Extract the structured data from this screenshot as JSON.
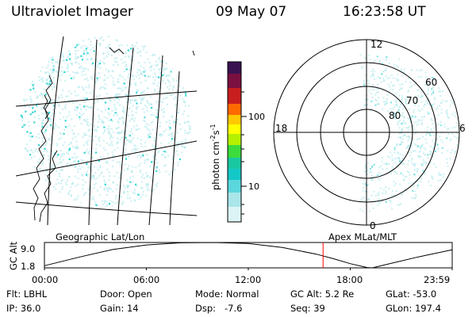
{
  "header": {
    "instrument": "Ultraviolet Imager",
    "date": "09 May 07",
    "time": "16:23:58 UT"
  },
  "colorbar": {
    "unit_label": "photon cm",
    "unit_sup1": "-2",
    "unit_mid": "s",
    "unit_sup2": "-1",
    "ticks": [
      "100",
      "10"
    ]
  },
  "polar_labels": {
    "top": "12",
    "bottom": "0",
    "left": "18",
    "right": "6",
    "lat60": "60",
    "lat70": "70",
    "lat80": "80"
  },
  "panel_labels": {
    "left": "Geographic Lat/Lon",
    "right": "Apex MLat/MLT"
  },
  "chart_data": {
    "type": "line",
    "title": "",
    "ylabel": "GC Alt",
    "yticks": [
      "9.0",
      "1.8"
    ],
    "ylim": [
      1.8,
      9.0
    ],
    "xticks": [
      "00:00",
      "06:00",
      "12:00",
      "18:00",
      "23:59"
    ],
    "xlim_hours": [
      0,
      24
    ],
    "current_time_hours": 16.4,
    "series": [
      {
        "x_hours": [
          0,
          2,
          4,
          6,
          8,
          10,
          12,
          14,
          16,
          17,
          18,
          19,
          19.3,
          20,
          22,
          23.98
        ],
        "values": [
          2.4,
          4.8,
          7.0,
          8.3,
          8.9,
          9.0,
          8.7,
          7.6,
          5.7,
          4.4,
          3.0,
          1.9,
          1.8,
          2.6,
          4.9,
          6.9
        ]
      }
    ]
  },
  "footer": {
    "flt": "Flt: LBHL",
    "door": "Door: Open",
    "mode": "Mode: Normal",
    "gcalt": "GC Alt: 5.2 Re",
    "glat": "GLat: -53.0",
    "ip": "IP: 36.0",
    "gain": "Gain: 14",
    "dsp": "Dsp:   -7.6",
    "seq": "Seq: 39",
    "glon": "GLon: 197.4"
  },
  "colors": {
    "speckle_dark": "#1ed2d2",
    "speckle_light": "#a8e6ea",
    "current_time_marker": "#ff0000"
  }
}
